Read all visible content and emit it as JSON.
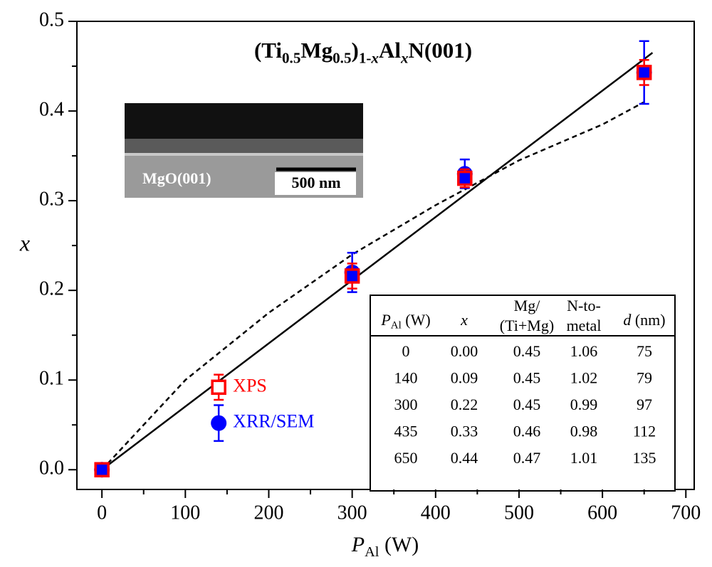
{
  "chart_data": {
    "type": "scatter",
    "title": [
      "(Ti",
      "0.5",
      "Mg",
      "0.5",
      ")",
      "1-",
      "x",
      "Al",
      "x",
      "N(001)"
    ],
    "xlabel": [
      "P",
      "Al",
      "(W)"
    ],
    "ylabel": "x",
    "xlim": [
      -30,
      710
    ],
    "ylim": [
      -0.022,
      0.5
    ],
    "xticks": [
      0,
      100,
      200,
      300,
      400,
      500,
      600,
      700
    ],
    "xminorticks": [
      50,
      150,
      250,
      350,
      450,
      550,
      650
    ],
    "yticks": [
      {
        "value": 0,
        "label": "0.0"
      },
      0.1,
      0.2,
      0.3,
      0.4,
      0.5
    ],
    "yminorticks": [
      0.05,
      0.15,
      0.25,
      0.35,
      0.45
    ],
    "series": [
      {
        "name": "XRR/SEM",
        "color": "#0000ff",
        "marker": "circle",
        "x": [
          0,
          140,
          300,
          435,
          650
        ],
        "values": [
          0,
          0.052,
          0.22,
          0.33,
          0.443
        ],
        "errors": [
          0.006,
          0.02,
          0.022,
          0.016,
          0.035
        ]
      },
      {
        "name": "XPS",
        "color": "#ff0000",
        "marker": "square",
        "x": [
          0,
          140,
          300,
          435,
          650
        ],
        "values": [
          0,
          0.092,
          0.216,
          0.325,
          0.443
        ],
        "errors": [
          0.006,
          0.014,
          0.014,
          0.01,
          0.014
        ]
      }
    ],
    "lines": [
      {
        "style": "solid",
        "x": [
          0,
          660
        ],
        "values": [
          0,
          0.465
        ]
      },
      {
        "style": "dashed",
        "x": [
          0,
          100,
          200,
          300,
          400,
          500,
          600,
          650
        ],
        "values": [
          0,
          0.1,
          0.175,
          0.24,
          0.295,
          0.345,
          0.385,
          0.41
        ]
      }
    ]
  },
  "inset": {
    "substrate": "MgO(001)",
    "scale_bar": "500 nm"
  },
  "table": {
    "header": [
      [
        "P",
        "Al",
        "(W)"
      ],
      [
        "x"
      ],
      [
        "Mg/",
        "(Ti+Mg)"
      ],
      [
        "N-to-",
        "metal"
      ],
      [
        "d",
        "(nm)"
      ]
    ],
    "rows": [
      [
        "0",
        "0.00",
        "0.45",
        "1.06",
        "75"
      ],
      [
        "140",
        "0.09",
        "0.45",
        "1.02",
        "79"
      ],
      [
        "300",
        "0.22",
        "0.45",
        "0.99",
        "97"
      ],
      [
        "435",
        "0.33",
        "0.46",
        "0.98",
        "112"
      ],
      [
        "650",
        "0.44",
        "0.47",
        "1.01",
        "135"
      ]
    ]
  }
}
